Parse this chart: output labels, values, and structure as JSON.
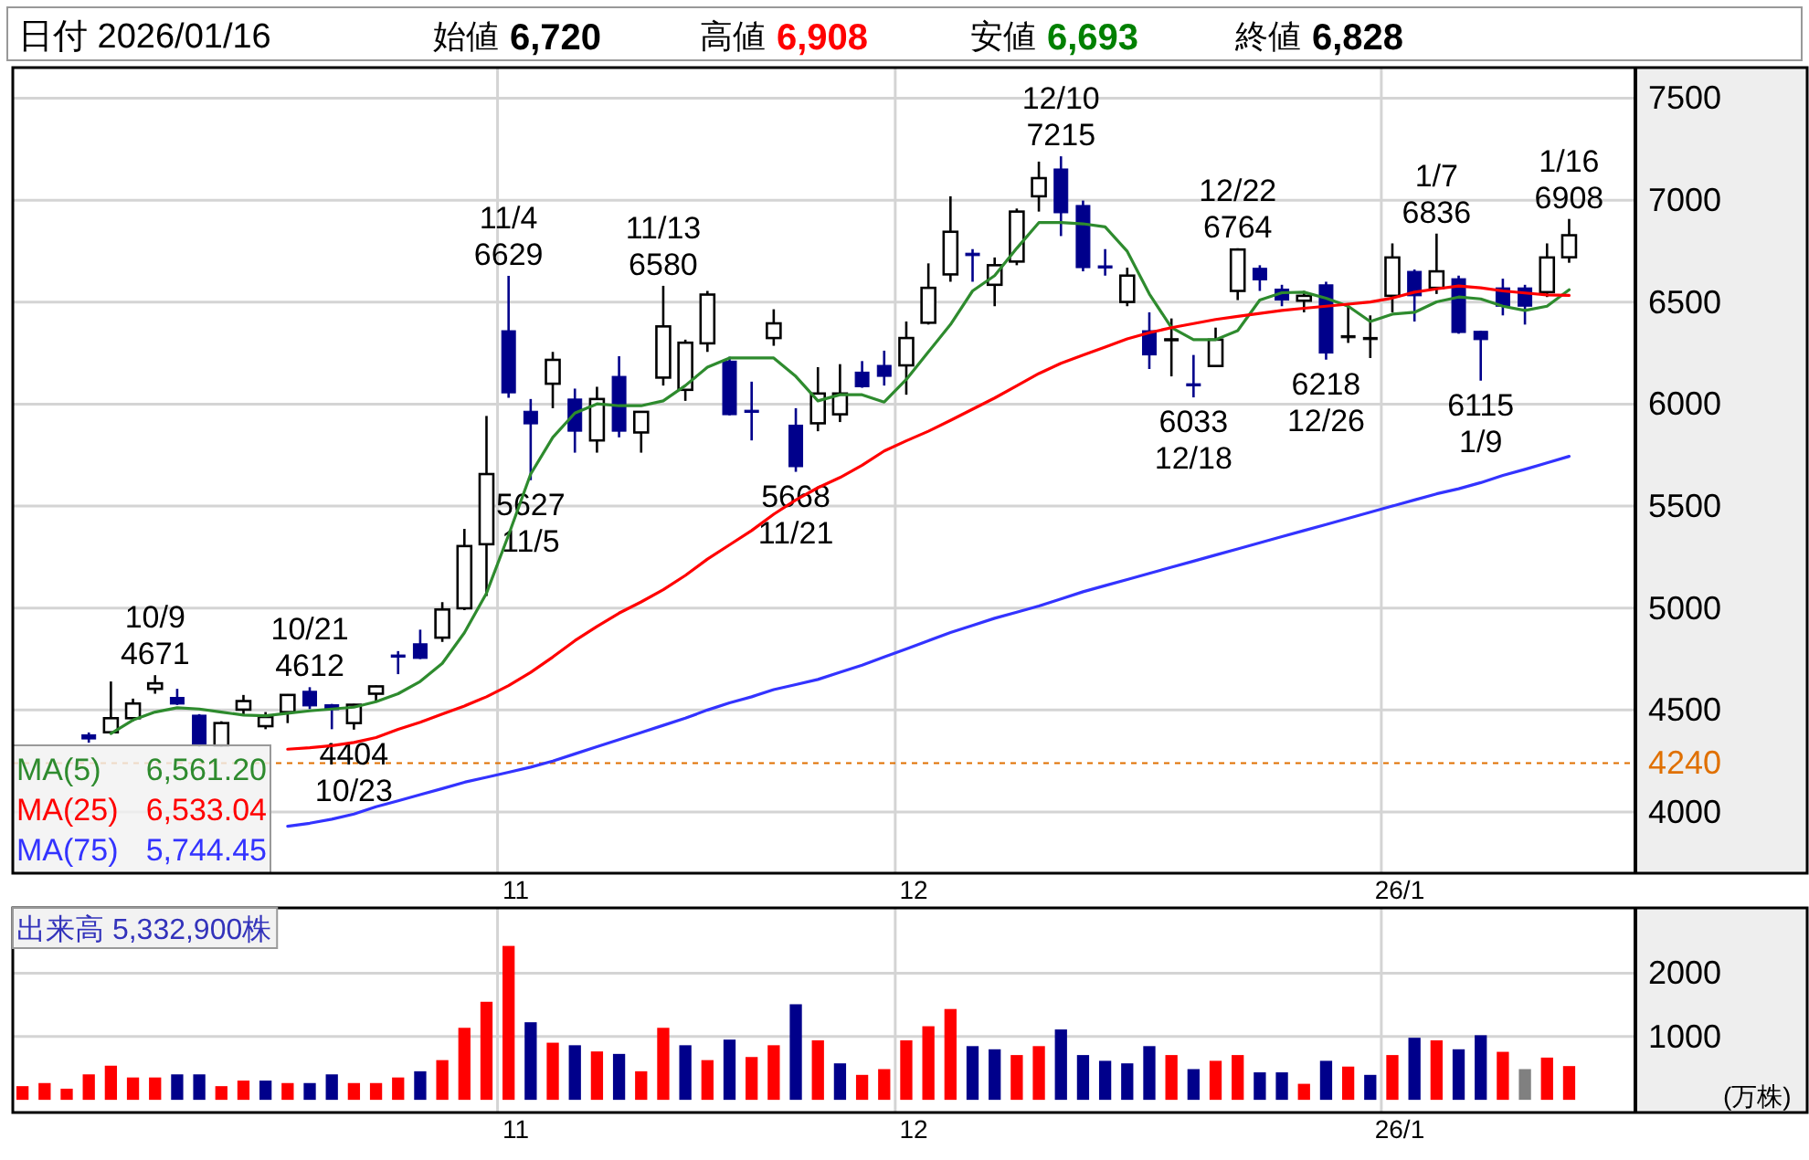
{
  "chart_data": [
    {
      "type": "candlestick",
      "title": "日付 2026/01/16",
      "annotations": [
        "始値 6,720",
        "高値 6,908",
        "安値 6,693",
        "終値 6,828",
        {
          "text": "10/9\n4671",
          "y": 4671
        },
        {
          "text": "10/21\n4612",
          "y": 4612
        },
        {
          "text": "4404\n10/23",
          "y": 4404
        },
        {
          "text": "11/4\n6629",
          "y": 6629
        },
        {
          "text": "5627\n11/5",
          "y": 5627
        },
        {
          "text": "11/13\n6580",
          "y": 6580
        },
        {
          "text": "5668\n11/21",
          "y": 5668
        },
        {
          "text": "12/10\n7215",
          "y": 7215
        },
        {
          "text": "6033\n12/18",
          "y": 6033
        },
        {
          "text": "12/22\n6764",
          "y": 6764
        },
        {
          "text": "6218\n12/26",
          "y": 6218
        },
        {
          "text": "1/7\n6836",
          "y": 6836
        },
        {
          "text": "6115\n1/9",
          "y": 6115
        },
        {
          "text": "1/16\n6908",
          "y": 6908
        }
      ],
      "categories": [
        null,
        null,
        null,
        null,
        null,
        null,
        null,
        null,
        null,
        null,
        null,
        null,
        null,
        null,
        null,
        null,
        null,
        null,
        null,
        null,
        null,
        null,
        "11",
        null,
        null,
        null,
        null,
        null,
        null,
        null,
        null,
        null,
        null,
        null,
        null,
        null,
        null,
        null,
        null,
        null,
        "12",
        null,
        null,
        null,
        null,
        null,
        null,
        null,
        null,
        null,
        null,
        null,
        null,
        null,
        null,
        null,
        null,
        null,
        null,
        null,
        null,
        null,
        "26/1",
        null,
        null,
        null,
        null,
        null,
        null,
        null,
        null
      ],
      "ohlc": [
        null,
        null,
        null,
        [
          4379,
          4390,
          4340,
          4358
        ],
        [
          4391,
          4640,
          4385,
          4460
        ],
        [
          4460,
          4556,
          4445,
          4532
        ],
        [
          4604,
          4671,
          4580,
          4631
        ],
        [
          4562,
          4604,
          4525,
          4529
        ],
        [
          4475,
          4480,
          4320,
          4326
        ],
        [
          4326,
          4445,
          4320,
          4436
        ],
        [
          4502,
          4574,
          4475,
          4544
        ],
        [
          4421,
          4490,
          4406,
          4466
        ],
        [
          4490,
          4578,
          4436,
          4574
        ],
        [
          4592,
          4612,
          4505,
          4520
        ],
        [
          4526,
          4530,
          4406,
          4502
        ],
        [
          4436,
          4530,
          4404,
          4526
        ],
        [
          4580,
          4620,
          4544,
          4616
        ],
        [
          4770,
          4789,
          4676,
          4766
        ],
        [
          4825,
          4894,
          4750,
          4753
        ],
        [
          4855,
          5029,
          4834,
          4993
        ],
        [
          4999,
          5388,
          4990,
          5304
        ],
        [
          5313,
          5942,
          5059,
          5657
        ],
        [
          6360,
          6629,
          6031,
          6055
        ],
        [
          5965,
          6025,
          5627,
          5903
        ],
        [
          6100,
          6256,
          5980,
          6217
        ],
        [
          6025,
          6076,
          5762,
          5867
        ],
        [
          5822,
          6085,
          5762,
          6025
        ],
        [
          6136,
          6235,
          5837,
          5867
        ],
        [
          5861,
          5965,
          5762,
          5962
        ],
        [
          6130,
          6580,
          6091,
          6381
        ],
        [
          6070,
          6316,
          6016,
          6301
        ],
        [
          6298,
          6555,
          6256,
          6537
        ],
        [
          6211,
          6232,
          5945,
          5948
        ],
        [
          5970,
          6110,
          5822,
          5962
        ],
        [
          6324,
          6465,
          6286,
          6396
        ],
        [
          5897,
          5980,
          5668,
          5693
        ],
        [
          5906,
          6181,
          5867,
          6052
        ],
        [
          5950,
          6196,
          5912,
          6052
        ],
        [
          6157,
          6211,
          6080,
          6085
        ],
        [
          6190,
          6262,
          6091,
          6136
        ],
        [
          6190,
          6405,
          6046,
          6324
        ],
        [
          6399,
          6690,
          6390,
          6570
        ],
        [
          6636,
          7019,
          6600,
          6845
        ],
        [
          6740,
          6760,
          6600,
          6728
        ],
        [
          6585,
          6719,
          6480,
          6681
        ],
        [
          6699,
          6959,
          6681,
          6944
        ],
        [
          7019,
          7189,
          6944,
          7108
        ],
        [
          7153,
          7215,
          6824,
          6938
        ],
        [
          6974,
          6998,
          6651,
          6669
        ],
        [
          6678,
          6760,
          6630,
          6672
        ],
        [
          6501,
          6669,
          6480,
          6630
        ],
        [
          6360,
          6450,
          6172,
          6241
        ],
        [
          6321,
          6420,
          6136,
          6321
        ],
        [
          6100,
          6241,
          6033,
          6094
        ],
        [
          6187,
          6375,
          6181,
          6316
        ],
        [
          6555,
          6764,
          6510,
          6758
        ],
        [
          6666,
          6681,
          6555,
          6609
        ],
        [
          6564,
          6585,
          6480,
          6510
        ],
        [
          6507,
          6555,
          6450,
          6531
        ],
        [
          6585,
          6600,
          6218,
          6250
        ],
        [
          6336,
          6495,
          6300,
          6336
        ],
        [
          6327,
          6435,
          6226,
          6327
        ],
        [
          6531,
          6788,
          6450,
          6719
        ],
        [
          6651,
          6660,
          6405,
          6531
        ],
        [
          6570,
          6836,
          6540,
          6651
        ],
        [
          6615,
          6630,
          6345,
          6351
        ],
        [
          6357,
          6360,
          6115,
          6316
        ],
        [
          6570,
          6615,
          6435,
          6480
        ],
        [
          6570,
          6585,
          6390,
          6480
        ],
        [
          6549,
          6788,
          6525,
          6719
        ],
        [
          6720,
          6908,
          6693,
          6828
        ]
      ],
      "series": [
        {
          "name": "MA(5) 6,561.20",
          "type": "line",
          "color": "#2e8b2e",
          "values": [
            null,
            null,
            null,
            null,
            4385,
            4451,
            4490,
            4511,
            4505,
            4490,
            4475,
            4472,
            4484,
            4496,
            4505,
            4514,
            4541,
            4580,
            4640,
            4729,
            4879,
            5073,
            5358,
            5657,
            5837,
            5956,
            6001,
            5992,
            5992,
            6016,
            6091,
            6181,
            6226,
            6226,
            6226,
            6136,
            6016,
            6046,
            6046,
            6010,
            6121,
            6256,
            6390,
            6555,
            6630,
            6764,
            6890,
            6890,
            6884,
            6869,
            6749,
            6540,
            6375,
            6316,
            6316,
            6360,
            6510,
            6546,
            6549,
            6519,
            6480,
            6405,
            6441,
            6450,
            6501,
            6525,
            6516,
            6480,
            6459,
            6480,
            6561
          ]
        },
        {
          "name": "MA(25) 6,533.04",
          "type": "line",
          "color": "#ff0000",
          "values": [
            null,
            null,
            null,
            null,
            null,
            null,
            null,
            null,
            null,
            null,
            null,
            null,
            4308,
            4315,
            4325,
            4341,
            4365,
            4405,
            4440,
            4480,
            4520,
            4565,
            4620,
            4685,
            4760,
            4840,
            4910,
            4975,
            5030,
            5090,
            5160,
            5240,
            5310,
            5380,
            5460,
            5530,
            5590,
            5640,
            5700,
            5770,
            5820,
            5867,
            5920,
            5975,
            6030,
            6090,
            6150,
            6200,
            6240,
            6280,
            6320,
            6350,
            6375,
            6395,
            6415,
            6430,
            6445,
            6459,
            6470,
            6480,
            6490,
            6501,
            6520,
            6549,
            6565,
            6579,
            6570,
            6555,
            6545,
            6535,
            6533
          ]
        },
        {
          "name": "MA(75) 5,744.45",
          "type": "line",
          "color": "#3333ff",
          "values": [
            null,
            null,
            null,
            null,
            null,
            null,
            null,
            null,
            null,
            null,
            null,
            null,
            3930,
            3945,
            3965,
            3990,
            4026,
            4055,
            4085,
            4115,
            4146,
            4170,
            4195,
            4220,
            4250,
            4285,
            4320,
            4355,
            4390,
            4425,
            4460,
            4500,
            4535,
            4565,
            4600,
            4625,
            4650,
            4685,
            4720,
            4760,
            4800,
            4840,
            4880,
            4915,
            4950,
            4980,
            5010,
            5045,
            5080,
            5110,
            5140,
            5170,
            5200,
            5230,
            5260,
            5290,
            5320,
            5350,
            5380,
            5410,
            5440,
            5470,
            5500,
            5530,
            5560,
            5585,
            5615,
            5650,
            5680,
            5712,
            5744
          ]
        }
      ],
      "ylim": [
        3700,
        7650
      ],
      "yticks": [
        4000,
        4500,
        5000,
        5500,
        6000,
        6500,
        7000,
        7500
      ],
      "grid": true,
      "legend": "bottom left",
      "ref_lines": [
        {
          "axis": "y",
          "value": 4240,
          "label": "4240",
          "color": "#e07000",
          "line_style": "dashed"
        }
      ]
    },
    {
      "type": "bar",
      "title": "出来高 5,332,900株",
      "ylabel": "(万株)",
      "categories": [
        null,
        null,
        null,
        null,
        null,
        null,
        null,
        null,
        null,
        null,
        null,
        null,
        null,
        null,
        null,
        null,
        null,
        null,
        null,
        null,
        null,
        null,
        "11",
        null,
        null,
        null,
        null,
        null,
        null,
        null,
        null,
        null,
        null,
        null,
        null,
        null,
        null,
        null,
        null,
        null,
        "12",
        null,
        null,
        null,
        null,
        null,
        null,
        null,
        null,
        null,
        null,
        null,
        null,
        null,
        null,
        null,
        null,
        null,
        null,
        null,
        null,
        null,
        "26/1",
        null,
        null,
        null,
        null,
        null,
        null,
        null,
        null
      ],
      "values": [
        216,
        265,
        176,
        402,
        539,
        353,
        353,
        402,
        402,
        216,
        304,
        304,
        265,
        265,
        402,
        265,
        265,
        353,
        451,
        627,
        1137,
        1548,
        2430,
        1225,
        902,
        862,
        764,
        725,
        451,
        1137,
        862,
        627,
        951,
        676,
        862,
        1509,
        939,
        576,
        394,
        485,
        939,
        1162,
        1434,
        848,
        798,
        707,
        848,
        1111,
        707,
        616,
        576,
        848,
        707,
        485,
        616,
        707,
        434,
        434,
        253,
        616,
        525,
        394,
        707,
        980,
        939,
        798,
        1020,
        758,
        485,
        667,
        533
      ],
      "colors": [
        "#ff0000",
        "#ff0000",
        "#ff0000",
        "#ff0000",
        "#ff0000",
        "#ff0000",
        "#ff0000",
        "#00008b",
        "#00008b",
        "#ff0000",
        "#ff0000",
        "#00008b",
        "#ff0000",
        "#00008b",
        "#00008b",
        "#ff0000",
        "#ff0000",
        "#ff0000",
        "#00008b",
        "#ff0000",
        "#ff0000",
        "#ff0000",
        "#ff0000",
        "#00008b",
        "#ff0000",
        "#00008b",
        "#ff0000",
        "#00008b",
        "#ff0000",
        "#ff0000",
        "#00008b",
        "#ff0000",
        "#00008b",
        "#ff0000",
        "#ff0000",
        "#00008b",
        "#ff0000",
        "#00008b",
        "#ff0000",
        "#ff0000",
        "#ff0000",
        "#ff0000",
        "#ff0000",
        "#00008b",
        "#00008b",
        "#ff0000",
        "#ff0000",
        "#00008b",
        "#00008b",
        "#00008b",
        "#00008b",
        "#00008b",
        "#ff0000",
        "#00008b",
        "#ff0000",
        "#ff0000",
        "#00008b",
        "#00008b",
        "#ff0000",
        "#00008b",
        "#ff0000",
        "#00008b",
        "#ff0000",
        "#00008b",
        "#ff0000",
        "#00008b",
        "#00008b",
        "#ff0000",
        "#808080",
        "#ff0000",
        "#ff0000"
      ],
      "ylim": [
        -200,
        3030
      ],
      "yticks": [
        1000,
        2000
      ],
      "grid": true
    }
  ]
}
